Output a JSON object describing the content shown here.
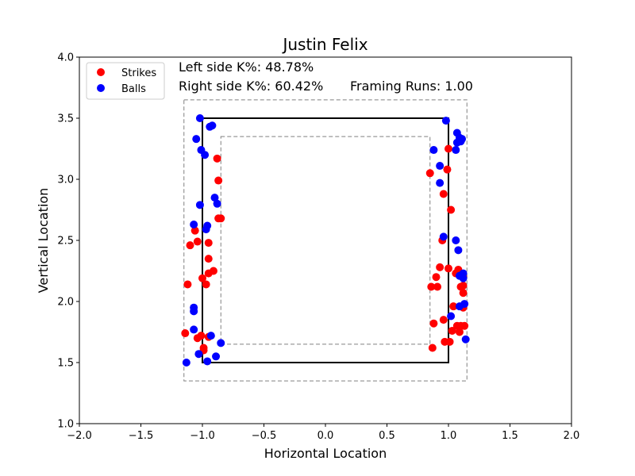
{
  "chart_data": {
    "type": "scatter",
    "title": "Justin Felix",
    "xlabel": "Horizontal Location",
    "ylabel": "Vertical Location",
    "xlim": [
      -2.0,
      2.0
    ],
    "ylim": [
      1.0,
      4.0
    ],
    "xticks": [
      "−2.0",
      "−1.5",
      "−1.0",
      "−0.5",
      "0.0",
      "0.5",
      "1.0",
      "1.5",
      "2.0"
    ],
    "xtick_values": [
      -2.0,
      -1.5,
      -1.0,
      -0.5,
      0.0,
      0.5,
      1.0,
      1.5,
      2.0
    ],
    "yticks": [
      "1.0",
      "1.5",
      "2.0",
      "2.5",
      "3.0",
      "3.5",
      "4.0"
    ],
    "ytick_values": [
      1.0,
      1.5,
      2.0,
      2.5,
      3.0,
      3.5,
      4.0
    ],
    "grid": false,
    "legend_position": "top-left",
    "annotations": {
      "left_k": "Left side K%: 48.78%",
      "right_k": "Right side K%: 60.42%",
      "framing": "Framing Runs: 1.00"
    },
    "zones": {
      "strike_zone": {
        "x": [
          -1.0,
          1.0
        ],
        "y": [
          1.5,
          3.5
        ],
        "color": "#000000"
      },
      "outer_zone": {
        "x": [
          -1.15,
          1.15
        ],
        "y": [
          1.35,
          3.65
        ],
        "color": "#808080"
      },
      "inner_zone": {
        "x": [
          -0.85,
          0.85
        ],
        "y": [
          1.65,
          3.35
        ],
        "color": "#808080"
      }
    },
    "series": [
      {
        "name": "Strikes",
        "color": "#ff0000",
        "points": [
          [
            -1.14,
            1.74
          ],
          [
            -1.12,
            2.14
          ],
          [
            -1.1,
            2.46
          ],
          [
            -1.06,
            2.58
          ],
          [
            -1.04,
            2.49
          ],
          [
            -1.04,
            1.7
          ],
          [
            -1.01,
            1.72
          ],
          [
            -1.0,
            2.19
          ],
          [
            -0.99,
            1.62
          ],
          [
            -0.99,
            1.6
          ],
          [
            -0.97,
            2.14
          ],
          [
            -0.95,
            2.35
          ],
          [
            -0.95,
            2.48
          ],
          [
            -0.95,
            2.23
          ],
          [
            -0.95,
            1.71
          ],
          [
            -0.91,
            2.25
          ],
          [
            -0.88,
            3.17
          ],
          [
            -0.87,
            2.99
          ],
          [
            -0.87,
            2.68
          ],
          [
            -0.85,
            2.68
          ],
          [
            0.85,
            3.05
          ],
          [
            0.86,
            2.12
          ],
          [
            0.87,
            1.62
          ],
          [
            0.88,
            1.82
          ],
          [
            0.9,
            2.2
          ],
          [
            0.91,
            2.12
          ],
          [
            0.93,
            2.28
          ],
          [
            0.95,
            2.5
          ],
          [
            0.96,
            1.85
          ],
          [
            0.96,
            2.88
          ],
          [
            0.97,
            1.67
          ],
          [
            0.99,
            3.08
          ],
          [
            1.0,
            3.25
          ],
          [
            1.0,
            2.27
          ],
          [
            1.01,
            1.67
          ],
          [
            1.02,
            2.75
          ],
          [
            1.03,
            1.76
          ],
          [
            1.04,
            1.96
          ],
          [
            1.06,
            2.23
          ],
          [
            1.07,
            1.8
          ],
          [
            1.08,
            2.26
          ],
          [
            1.09,
            1.75
          ],
          [
            1.1,
            1.8
          ],
          [
            1.1,
            2.12
          ],
          [
            1.12,
            2.2
          ],
          [
            1.12,
            2.13
          ],
          [
            1.12,
            1.95
          ],
          [
            1.12,
            2.07
          ],
          [
            1.13,
            1.8
          ]
        ]
      },
      {
        "name": "Balls",
        "color": "#0000ff",
        "points": [
          [
            -1.13,
            1.5
          ],
          [
            -1.07,
            2.63
          ],
          [
            -1.07,
            1.95
          ],
          [
            -1.07,
            1.92
          ],
          [
            -1.07,
            1.77
          ],
          [
            -1.05,
            3.33
          ],
          [
            -1.03,
            1.57
          ],
          [
            -1.02,
            3.5
          ],
          [
            -1.02,
            2.79
          ],
          [
            -1.01,
            3.24
          ],
          [
            -0.98,
            3.2
          ],
          [
            -0.97,
            2.59
          ],
          [
            -0.96,
            2.62
          ],
          [
            -0.96,
            1.51
          ],
          [
            -0.94,
            3.43
          ],
          [
            -0.93,
            1.72
          ],
          [
            -0.92,
            3.44
          ],
          [
            -0.9,
            2.85
          ],
          [
            -0.89,
            1.55
          ],
          [
            -0.88,
            2.8
          ],
          [
            -0.85,
            1.66
          ],
          [
            0.88,
            3.24
          ],
          [
            0.93,
            3.11
          ],
          [
            0.93,
            2.97
          ],
          [
            0.96,
            2.53
          ],
          [
            0.98,
            3.48
          ],
          [
            1.02,
            1.88
          ],
          [
            1.06,
            2.5
          ],
          [
            1.06,
            3.24
          ],
          [
            1.07,
            3.38
          ],
          [
            1.07,
            3.3
          ],
          [
            1.08,
            2.42
          ],
          [
            1.09,
            3.34
          ],
          [
            1.09,
            2.21
          ],
          [
            1.09,
            1.96
          ],
          [
            1.1,
            3.31
          ],
          [
            1.11,
            3.33
          ],
          [
            1.12,
            2.19
          ],
          [
            1.12,
            2.23
          ],
          [
            1.13,
            1.98
          ],
          [
            1.14,
            1.69
          ]
        ]
      }
    ]
  }
}
